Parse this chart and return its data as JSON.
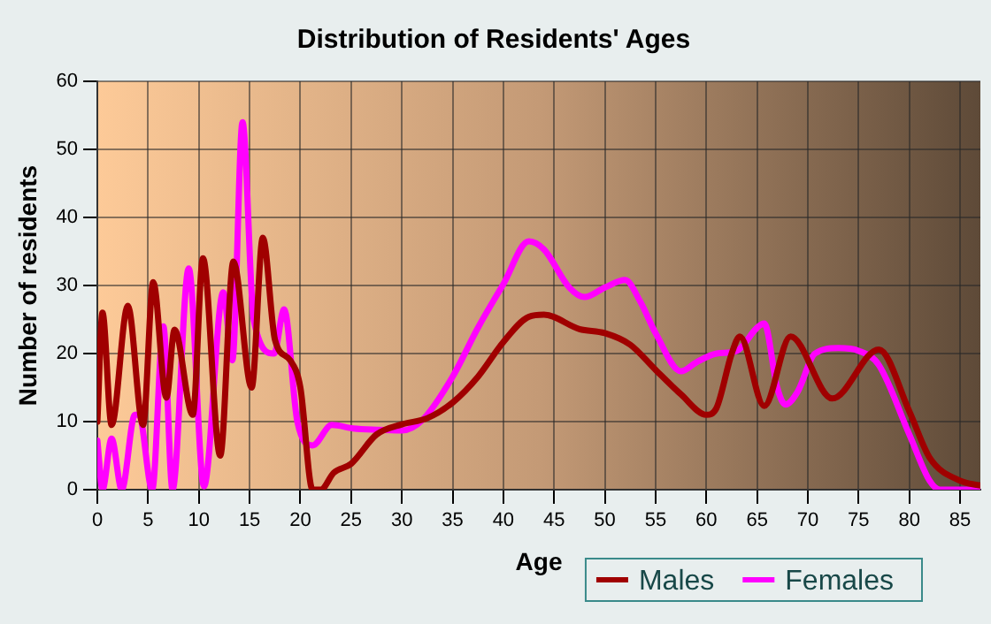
{
  "chart_data": {
    "type": "line",
    "title": "Distribution of Residents' Ages",
    "xlabel": "Age",
    "ylabel": "Number of residents",
    "xlim": [
      0,
      87
    ],
    "xticks": [
      0,
      5,
      10,
      15,
      20,
      25,
      30,
      35,
      40,
      45,
      50,
      55,
      60,
      65,
      70,
      75,
      80,
      85
    ],
    "ylim": [
      0,
      60
    ],
    "yticks": [
      0,
      10,
      20,
      30,
      40,
      50,
      60
    ],
    "grid": true,
    "legend": "bottom right",
    "marker": "none",
    "line_style": "solid",
    "series": [
      {
        "name": "Males",
        "color": "#a00000",
        "x": [
          0,
          0.5,
          1.4,
          3,
          4.5,
          5.5,
          6.8,
          7.6,
          9.4,
          10.4,
          12.1,
          13.4,
          15.2,
          16.3,
          17.5,
          19,
          20,
          21.2,
          22,
          23.3,
          25,
          27.5,
          30,
          32.5,
          35,
          37.5,
          40,
          42.5,
          44,
          47.5,
          50,
          52.5,
          55,
          57.5,
          60,
          61,
          62.5,
          63.3,
          65.7,
          68.3,
          72.4,
          77,
          80,
          82,
          85,
          87
        ],
        "values": [
          10,
          26,
          9.5,
          27,
          9.5,
          30.5,
          13.5,
          23.5,
          11,
          34,
          5,
          33.5,
          15,
          37,
          22,
          19,
          15,
          0,
          0,
          2.5,
          3.8,
          8.1,
          9.6,
          10.5,
          12.8,
          16.6,
          21.7,
          25.4,
          25.7,
          23.6,
          23,
          21.3,
          17.6,
          14,
          11,
          12,
          20,
          22.5,
          12.3,
          22.5,
          13.4,
          20.6,
          11.5,
          4.7,
          1.3,
          0.6
        ]
      },
      {
        "name": "Females",
        "color": "#ff00ff",
        "x": [
          0,
          0.5,
          1.4,
          2.4,
          3.7,
          4.1,
          5.4,
          6.5,
          7.4,
          9,
          10.5,
          12.4,
          13.3,
          14.3,
          15.4,
          17.4,
          18.4,
          19.7,
          21.2,
          23.1,
          25.2,
          27.5,
          30,
          32,
          35,
          37.5,
          40,
          42.5,
          44,
          46.5,
          48,
          50,
          52,
          53.5,
          55,
          57.5,
          59,
          61,
          63,
          65,
          65.7,
          67,
          67.8,
          69,
          70.7,
          73,
          75,
          77,
          80,
          82,
          83,
          87
        ],
        "values": [
          7.2,
          0,
          7.5,
          0,
          11,
          11,
          0,
          24,
          0,
          32.5,
          0.5,
          29,
          19,
          54,
          25,
          20,
          26.5,
          10,
          6.5,
          9.5,
          9,
          8.8,
          8.7,
          10.2,
          16.6,
          23.8,
          30.2,
          36.5,
          35.3,
          29.7,
          28.3,
          29.7,
          30.8,
          27.6,
          23,
          17.4,
          18.7,
          20,
          20.4,
          23.8,
          24.4,
          14.9,
          12.5,
          14.4,
          20,
          20.8,
          20.4,
          18.3,
          8.1,
          1.3,
          0,
          0
        ]
      }
    ]
  }
}
